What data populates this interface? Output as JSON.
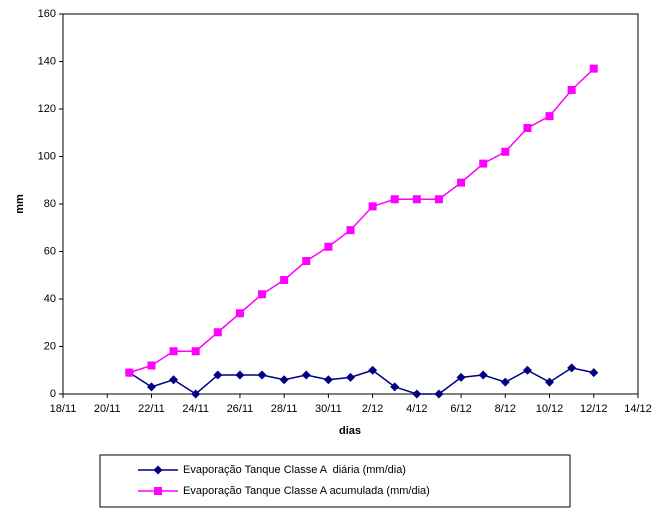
{
  "chart_data": {
    "type": "line",
    "xlabel": "dias",
    "ylabel": "mm",
    "categories": [
      "18/11",
      null,
      "20/11",
      null,
      "22/11",
      null,
      "24/11",
      null,
      "26/11",
      null,
      "28/11",
      null,
      "30/11",
      null,
      "2/12",
      null,
      "4/12",
      null,
      "6/12",
      null,
      "8/12",
      null,
      "10/12",
      null,
      "12/12",
      null,
      "14/12"
    ],
    "series": [
      {
        "name": "Evaporação Tanque Classe A  diária (mm/dia)",
        "color": "#000080",
        "marker": "diamond",
        "values": [
          null,
          null,
          null,
          9,
          3,
          6,
          0,
          8,
          8,
          8,
          6,
          8,
          6,
          7,
          10,
          3,
          0,
          0,
          7,
          8,
          5,
          10,
          5,
          11,
          9,
          null,
          null
        ]
      },
      {
        "name": "Evaporação Tanque Classe A acumulada (mm/dia)",
        "color": "#ff00ff",
        "marker": "square",
        "values": [
          null,
          null,
          null,
          9,
          12,
          18,
          18,
          26,
          34,
          42,
          48,
          56,
          62,
          69,
          79,
          82,
          82,
          82,
          89,
          97,
          102,
          112,
          117,
          128,
          137,
          null,
          null
        ]
      }
    ],
    "ylim": [
      0,
      160
    ],
    "yticks": [
      0,
      20,
      40,
      60,
      80,
      100,
      120,
      140,
      160
    ]
  }
}
